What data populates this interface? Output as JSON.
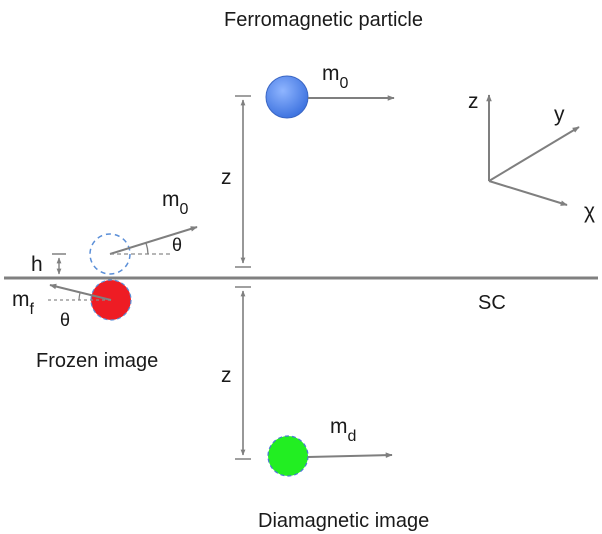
{
  "labels": {
    "ferromagnetic_particle": "Ferromagnetic particle",
    "frozen_image": "Frozen image",
    "diamagnetic_image": "Diamagnetic image",
    "sc": "SC",
    "h": "h",
    "z_top": "z",
    "z_bottom": "z",
    "m0_top": {
      "base": "m",
      "sub": "0"
    },
    "m0_tilted": {
      "base": "m",
      "sub": "0"
    },
    "mf": {
      "base": "m",
      "sub": "f"
    },
    "md": {
      "base": "m",
      "sub": "d"
    },
    "theta_upper": "θ",
    "theta_lower": "θ",
    "axes": {
      "z": "z",
      "y": "y",
      "x": "χ"
    }
  },
  "colors": {
    "ferromagnetic": "#4f86ee",
    "frozen": "#ee1c24",
    "diamagnetic": "#22ee22",
    "line": "#808080",
    "dashed_outline": "#5b8fd8"
  }
}
